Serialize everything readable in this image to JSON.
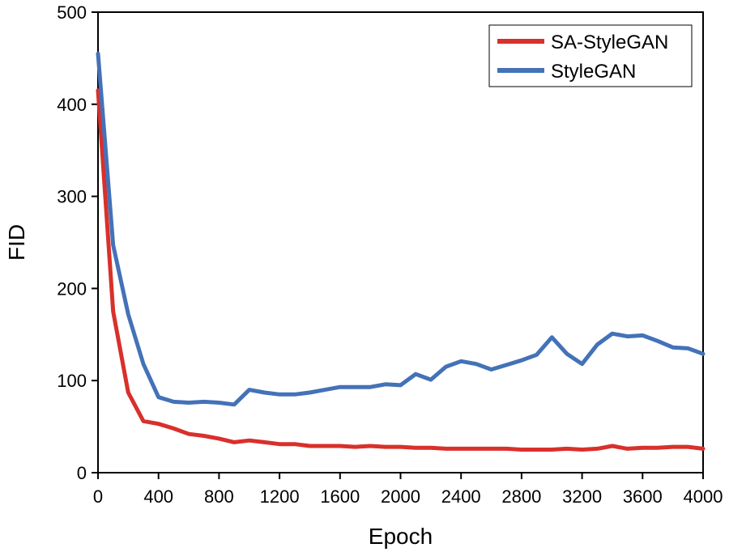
{
  "chart_data": {
    "type": "line",
    "title": "",
    "xlabel": "Epoch",
    "ylabel": "FID",
    "xlim": [
      0,
      4000
    ],
    "ylim": [
      0,
      500
    ],
    "x_ticks": [
      0,
      400,
      800,
      1200,
      1600,
      2000,
      2400,
      2800,
      3200,
      3600,
      4000
    ],
    "y_ticks": [
      0,
      100,
      200,
      300,
      400,
      500
    ],
    "x_tick_labels": [
      "0",
      "400",
      "800",
      "1200",
      "1600",
      "2000",
      "2400",
      "2800",
      "3200",
      "3600",
      "4000"
    ],
    "y_tick_labels": [
      "0",
      "100",
      "200",
      "300",
      "400",
      "500"
    ],
    "grid": false,
    "legend_position": "top-right",
    "series": [
      {
        "name": "SA-StyleGAN",
        "color": "#d9302b",
        "x": [
          0,
          100,
          200,
          300,
          400,
          500,
          600,
          700,
          800,
          900,
          1000,
          1100,
          1200,
          1300,
          1400,
          1500,
          1600,
          1700,
          1800,
          1900,
          2000,
          2100,
          2200,
          2300,
          2400,
          2500,
          2600,
          2700,
          2800,
          2900,
          3000,
          3100,
          3200,
          3300,
          3400,
          3500,
          3600,
          3700,
          3800,
          3900,
          4000
        ],
        "values": [
          415,
          175,
          87,
          56,
          53,
          48,
          42,
          40,
          37,
          33,
          35,
          33,
          31,
          31,
          29,
          29,
          29,
          28,
          29,
          28,
          28,
          27,
          27,
          26,
          26,
          26,
          26,
          26,
          25,
          25,
          25,
          26,
          25,
          26,
          29,
          26,
          27,
          27,
          28,
          28,
          26
        ]
      },
      {
        "name": "StyleGAN",
        "color": "#4472b8",
        "x": [
          0,
          100,
          200,
          300,
          400,
          500,
          600,
          700,
          800,
          900,
          1000,
          1100,
          1200,
          1300,
          1400,
          1500,
          1600,
          1700,
          1800,
          1900,
          2000,
          2100,
          2200,
          2300,
          2400,
          2500,
          2600,
          2700,
          2800,
          2900,
          3000,
          3100,
          3200,
          3300,
          3400,
          3500,
          3600,
          3700,
          3800,
          3900,
          4000
        ],
        "values": [
          455,
          247,
          172,
          118,
          82,
          77,
          76,
          77,
          76,
          74,
          90,
          87,
          85,
          85,
          87,
          90,
          93,
          93,
          93,
          96,
          95,
          107,
          101,
          115,
          121,
          118,
          112,
          117,
          122,
          128,
          147,
          129,
          118,
          139,
          151,
          148,
          149,
          143,
          136,
          135,
          129
        ]
      }
    ]
  }
}
